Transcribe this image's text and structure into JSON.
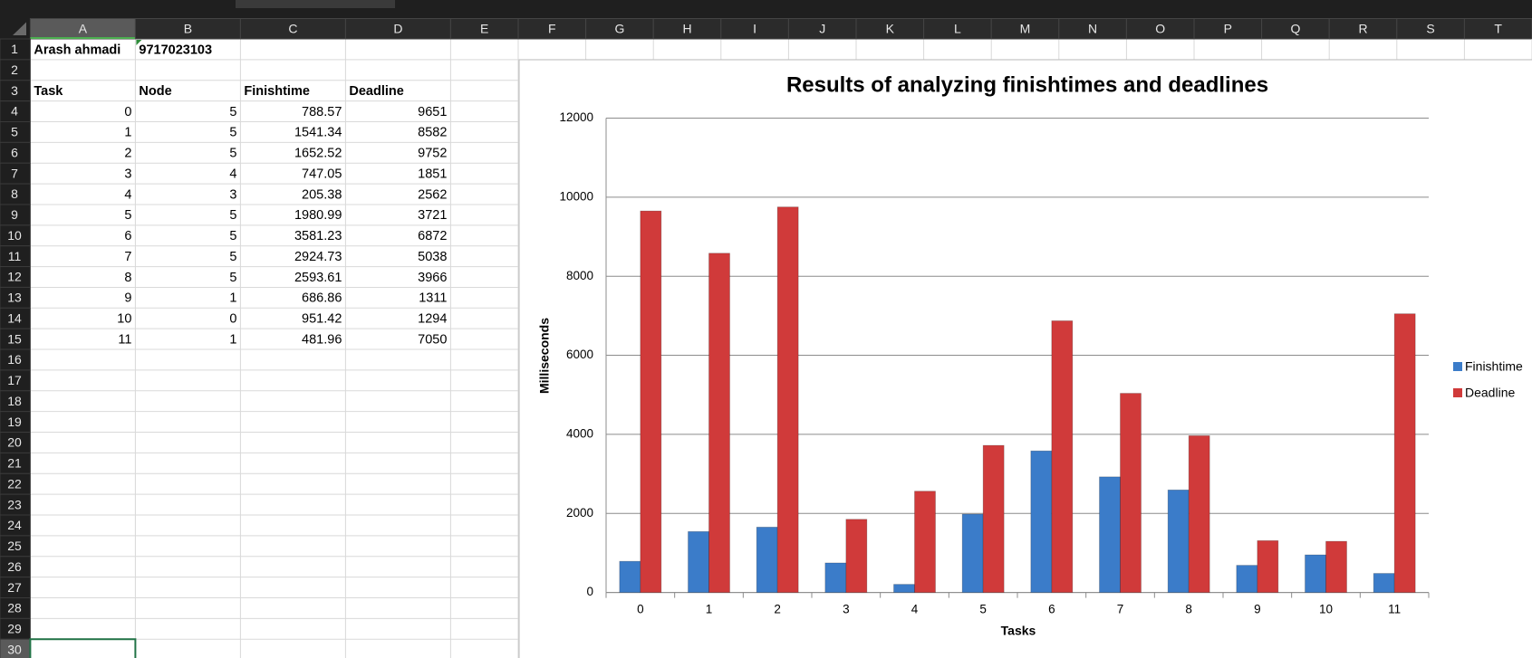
{
  "sheet": {
    "columns": [
      "A",
      "B",
      "C",
      "D",
      "E",
      "F",
      "G",
      "H",
      "I",
      "J",
      "K",
      "L",
      "M",
      "N",
      "O",
      "P",
      "Q",
      "R",
      "S",
      "T"
    ],
    "row_numbers": [
      1,
      2,
      3,
      4,
      5,
      6,
      7,
      8,
      9,
      10,
      11,
      12,
      13,
      14,
      15,
      16,
      17,
      18,
      19,
      20,
      21,
      22,
      23,
      24,
      25,
      26,
      27,
      28,
      29,
      30
    ],
    "name": "Arash ahmadi",
    "id": "9717023103",
    "table": {
      "header": [
        "Task",
        "Node",
        "Finishtime",
        "Deadline"
      ],
      "rows": [
        [
          0,
          5,
          788.57,
          9651
        ],
        [
          1,
          5,
          1541.34,
          8582
        ],
        [
          2,
          5,
          1652.52,
          9752
        ],
        [
          3,
          4,
          747.05,
          1851
        ],
        [
          4,
          3,
          205.38,
          2562
        ],
        [
          5,
          5,
          1980.99,
          3721
        ],
        [
          6,
          5,
          3581.23,
          6872
        ],
        [
          7,
          5,
          2924.73,
          5038
        ],
        [
          8,
          5,
          2593.61,
          3966
        ],
        [
          9,
          1,
          686.86,
          1311
        ],
        [
          10,
          0,
          951.42,
          1294
        ],
        [
          11,
          1,
          481.96,
          7050
        ]
      ]
    }
  },
  "chart_data": {
    "type": "bar",
    "title": "Results of analyzing finishtimes and deadlines",
    "x_label": "Tasks",
    "y_label": "Milliseconds",
    "categories": [
      "0",
      "1",
      "2",
      "3",
      "4",
      "5",
      "6",
      "7",
      "8",
      "9",
      "10",
      "11"
    ],
    "series": [
      {
        "name": "Finishtime",
        "color": "#3b7cc9",
        "values": [
          788.57,
          1541.34,
          1652.52,
          747.05,
          205.38,
          1980.99,
          3581.23,
          2924.73,
          2593.61,
          686.86,
          951.42,
          481.96
        ]
      },
      {
        "name": "Deadline",
        "color": "#d03a3a",
        "values": [
          9651,
          8582,
          9752,
          1851,
          2562,
          3721,
          6872,
          5038,
          3966,
          1311,
          1294,
          7050
        ]
      }
    ],
    "ylim": [
      0,
      12000
    ],
    "yticks": [
      0,
      2000,
      4000,
      6000,
      8000,
      10000,
      12000
    ],
    "grid": true,
    "legend": "right"
  }
}
